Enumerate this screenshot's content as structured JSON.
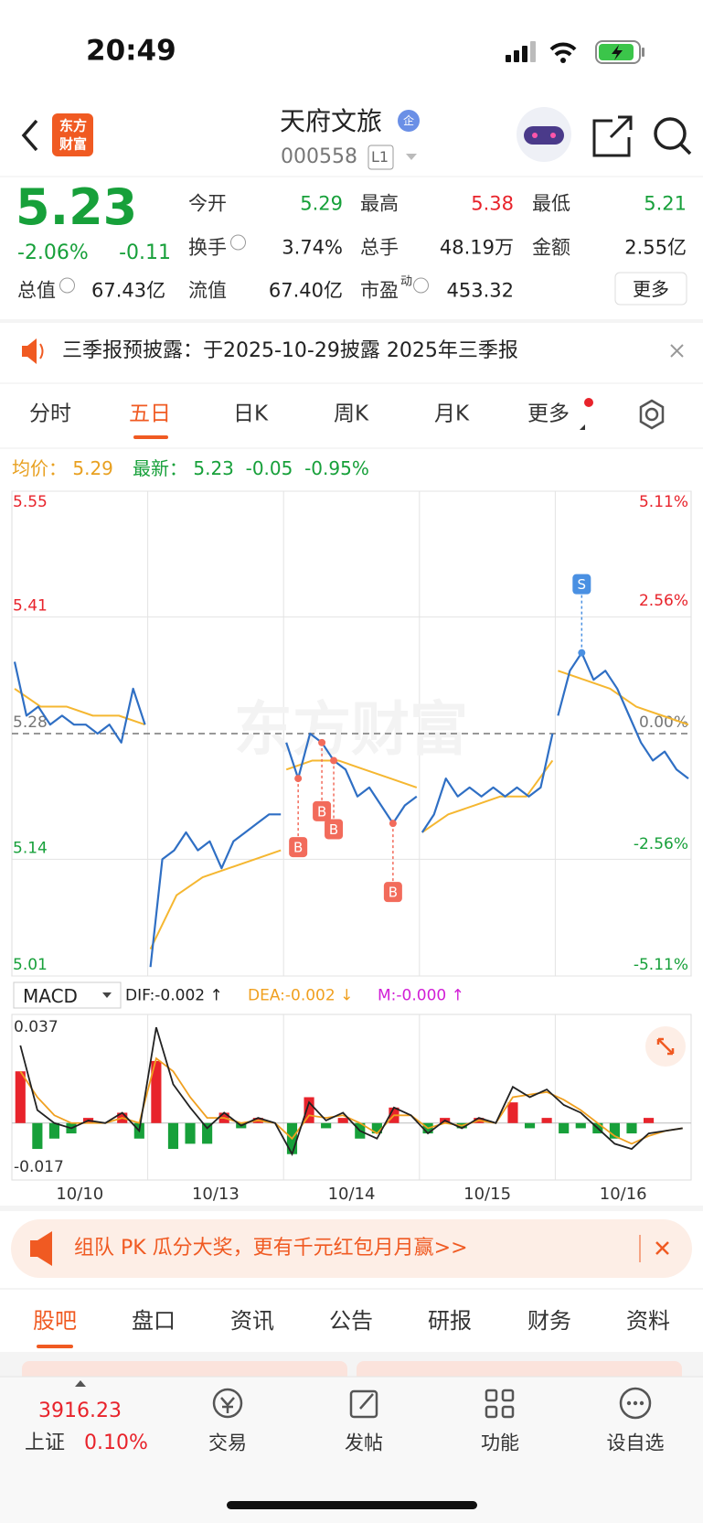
{
  "status_bar": {
    "time": "20:49"
  },
  "header": {
    "logo": [
      "东方",
      "财富"
    ],
    "name": "天府文旅",
    "badge": "企",
    "code": "000558",
    "level": "L1"
  },
  "quote": {
    "price": "5.23",
    "change_pct": "-2.06%",
    "change": "-0.11",
    "more": "更多",
    "stats": [
      {
        "label": "今开",
        "value": "5.29",
        "color": "#17a03a"
      },
      {
        "label": "最高",
        "value": "5.38",
        "color": "#e8232b"
      },
      {
        "label": "最低",
        "value": "5.21",
        "color": "#17a03a"
      },
      {
        "label": "换手",
        "value": "3.74%",
        "color": "#222222"
      },
      {
        "label": "总手",
        "value": "48.19万",
        "color": "#222222"
      },
      {
        "label": "金额",
        "value": "2.55亿",
        "color": "#222222"
      },
      {
        "label": "总值",
        "value": "67.43亿",
        "color": "#222222"
      },
      {
        "label": "流值",
        "value": "67.40亿",
        "color": "#222222"
      },
      {
        "label": "市盈",
        "sup": "动",
        "value": "453.32",
        "color": "#222222"
      }
    ]
  },
  "notice": "三季报预披露：于2025-10-29披露 2025年三季报",
  "tabs": {
    "items": [
      "分时",
      "五日",
      "日K",
      "周K",
      "月K",
      "更多"
    ],
    "active": 1
  },
  "summary": {
    "avg_label": "均价：",
    "avg": "5.29",
    "last_label": "最新：",
    "last": "5.23",
    "change": "-0.05",
    "change_pct": "-0.95%"
  },
  "chart": {
    "type": "line",
    "watermark": "东方财富",
    "categories": [
      "10/10",
      "10/13",
      "10/14",
      "10/15",
      "10/16"
    ],
    "ylim": [
      5.01,
      5.55
    ],
    "yticks": [
      5.55,
      5.41,
      5.28,
      5.14,
      5.01
    ],
    "y2lim": [
      -5.11,
      5.11
    ],
    "y2ticks": [
      {
        "value": 5.11,
        "label": "5.11%"
      },
      {
        "value": 2.56,
        "label": "2.56%"
      },
      {
        "value": 0,
        "label": "0.00%"
      },
      {
        "value": -2.56,
        "label": "-2.56%"
      },
      {
        "value": -5.11,
        "label": "-5.11%"
      }
    ],
    "price_color": "#2f6fc4",
    "avg_color": "#f5b731",
    "price": [
      [
        5.36,
        5.3,
        5.31,
        5.29,
        5.3,
        5.29,
        5.29,
        5.28,
        5.29,
        5.27,
        5.33,
        5.29
      ],
      [
        5.02,
        5.14,
        5.15,
        5.17,
        5.15,
        5.16,
        5.13,
        5.16,
        5.17,
        5.18,
        5.19,
        5.19
      ],
      [
        5.27,
        5.23,
        5.28,
        5.27,
        5.25,
        5.24,
        5.21,
        5.22,
        5.2,
        5.18,
        5.2,
        5.21
      ],
      [
        5.17,
        5.19,
        5.23,
        5.21,
        5.22,
        5.21,
        5.22,
        5.21,
        5.22,
        5.21,
        5.22,
        5.28
      ],
      [
        5.3,
        5.35,
        5.37,
        5.34,
        5.35,
        5.33,
        5.3,
        5.27,
        5.25,
        5.26,
        5.24,
        5.23
      ]
    ],
    "avg": [
      [
        5.33,
        5.31,
        5.31,
        5.3,
        5.3,
        5.29
      ],
      [
        5.04,
        5.1,
        5.12,
        5.13,
        5.14,
        5.15
      ],
      [
        5.24,
        5.25,
        5.25,
        5.24,
        5.23,
        5.22
      ],
      [
        5.17,
        5.19,
        5.2,
        5.21,
        5.21,
        5.25
      ],
      [
        5.35,
        5.34,
        5.33,
        5.31,
        5.3,
        5.29
      ]
    ],
    "trades": [
      {
        "label": "B",
        "day": 2,
        "point": 1
      },
      {
        "label": "B",
        "day": 2,
        "point": 3
      },
      {
        "label": "B",
        "day": 2,
        "point": 4
      },
      {
        "label": "B",
        "day": 2,
        "point": 9
      },
      {
        "label": "S",
        "day": 4,
        "point": 2
      }
    ]
  },
  "macd": {
    "indicator": "MACD",
    "dif_label": "DIF:-0.002 ↑",
    "dea_label": "DEA:-0.002 ↓",
    "m_label": "M:-0.000 ↑",
    "ylim": [
      -0.022,
      0.042
    ],
    "yticks": [
      0.037,
      -0.017
    ],
    "dif": [
      0.03,
      0.005,
      0.0,
      -0.002,
      0.001,
      0.0,
      0.004,
      -0.003,
      0.037,
      0.015,
      0.006,
      -0.002,
      0.004,
      -0.001,
      0.002,
      0.0,
      -0.012,
      0.008,
      0.001,
      0.004,
      -0.003,
      -0.006,
      0.006,
      0.003,
      -0.004,
      0.001,
      -0.002,
      0.002,
      0.0,
      0.014,
      0.01,
      0.013,
      0.007,
      0.004,
      -0.002,
      -0.008,
      -0.01,
      -0.004,
      -0.003,
      -0.002
    ],
    "dea": [
      0.02,
      0.01,
      0.003,
      0.0,
      0.0,
      0.0,
      0.002,
      0.0,
      0.025,
      0.02,
      0.01,
      0.002,
      0.002,
      0.0,
      0.001,
      0.0,
      -0.006,
      0.003,
      0.002,
      0.003,
      0.0,
      -0.004,
      0.003,
      0.003,
      -0.002,
      0.0,
      -0.001,
      0.001,
      0.0,
      0.01,
      0.011,
      0.012,
      0.009,
      0.005,
      0.0,
      -0.005,
      -0.008,
      -0.005,
      -0.003,
      -0.002
    ],
    "hist": [
      0.02,
      -0.01,
      -0.006,
      -0.004,
      0.002,
      0.0,
      0.004,
      -0.006,
      0.024,
      -0.01,
      -0.008,
      -0.008,
      0.004,
      -0.002,
      0.002,
      0.0,
      -0.012,
      0.01,
      -0.002,
      0.002,
      -0.006,
      -0.004,
      0.006,
      0.0,
      -0.004,
      0.002,
      -0.002,
      0.002,
      0.0,
      0.008,
      -0.002,
      0.002,
      -0.004,
      -0.002,
      -0.004,
      -0.006,
      -0.004,
      0.002,
      0.0,
      0.0
    ]
  },
  "ad": "组队 PK 瓜分大奖，更有千元红包月月赢>>",
  "bottom_tabs": {
    "items": [
      "股吧",
      "盘口",
      "资讯",
      "公告",
      "研报",
      "财务",
      "资料"
    ],
    "active": 0
  },
  "nav": {
    "index_value": "3916.23",
    "index_name": "上证",
    "index_pct": "0.10%",
    "items": [
      "交易",
      "发帖",
      "功能",
      "设自选"
    ]
  }
}
